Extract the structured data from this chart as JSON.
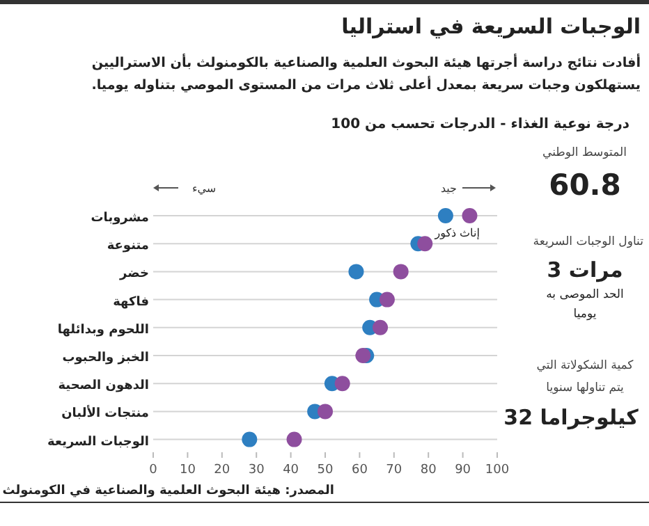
{
  "chart_data": {
    "type": "scatter",
    "orientation": "horizontal",
    "title": "الوجبات السريعة في استراليا",
    "subtitle": "أفادت نتائج دراسة أجرتها هيئة البحوث العلمية والصناعية بالكومنولث بأن الاستراليين يستهلكون وجبات سريعة بمعدل أعلى ثلاث مرات من المستوى الموصي بتناوله يوميا.",
    "xlabel": "درجة نوعية الغذاء - الدرجات تحسب من 100",
    "categories": [
      "مشروبات",
      "متنوعة",
      "خضر",
      "فاكهة",
      "اللحوم وبدائلها",
      "الخبز والحبوب",
      "الدهون الصحية",
      "منتجات الألبان",
      "الوجبات السريعة"
    ],
    "series": [
      {
        "name": "ذكور",
        "color": "#2e7fc1",
        "values": [
          85,
          77,
          59,
          65,
          63,
          62,
          52,
          47,
          28
        ]
      },
      {
        "name": "إناث",
        "color": "#8e4e9e",
        "values": [
          92,
          79,
          72,
          68,
          66,
          61,
          55,
          50,
          41
        ]
      }
    ],
    "xlim": [
      0,
      100
    ],
    "xticks": [
      0,
      10,
      20,
      30,
      40,
      50,
      60,
      70,
      80,
      90,
      100
    ],
    "grid": "y",
    "marker": "circle",
    "annotations": [
      "سيء",
      "جيد",
      "المتوسط الوطني",
      "60.8",
      "تناول الوجبات السريعة",
      "3 مرات",
      "الحد الموصى به",
      "يوميا",
      "كمية الشكولاتة التي",
      "يتم تناولها سنويا",
      "32 كيلوجراما",
      "المصدر: هيئة البحوث العلمية والصناعية في الكومنولث"
    ]
  }
}
